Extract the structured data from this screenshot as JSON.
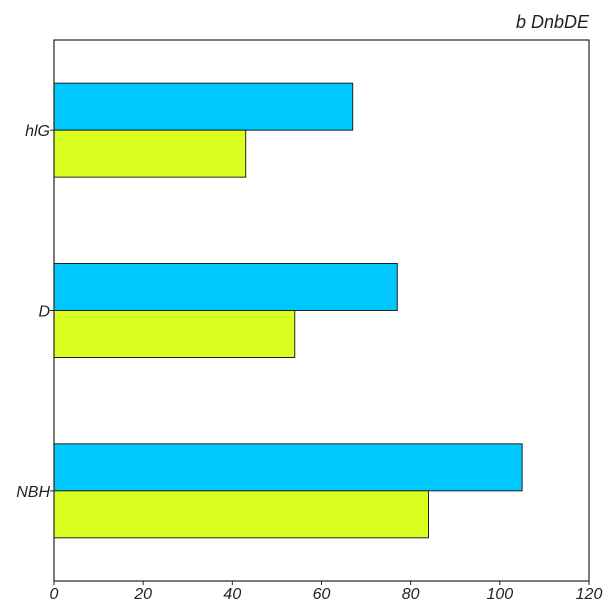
{
  "chart_data": {
    "type": "bar",
    "orientation": "horizontal",
    "title": "b DnbDE",
    "xlabel": "",
    "ylabel": "",
    "categories": [
      "hlG",
      "D",
      "NBH"
    ],
    "series": [
      {
        "values": [
          67,
          77,
          105
        ],
        "color": "#00c8ff"
      },
      {
        "values": [
          43,
          54,
          84
        ],
        "color": "#d8ff20"
      }
    ],
    "xlim": [
      0,
      120
    ],
    "xticks": [
      "0",
      "20",
      "40",
      "60",
      "80",
      "100",
      "120"
    ],
    "grid": false,
    "legend": "none"
  }
}
